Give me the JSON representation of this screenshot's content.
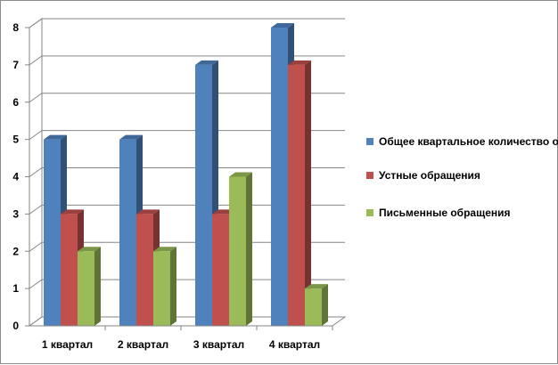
{
  "chart_data": {
    "type": "bar",
    "categories": [
      "1 квартал",
      "2 квартал",
      "3 квартал",
      "4 квартал"
    ],
    "series": [
      {
        "name": "Общее квартальное  количество обращений",
        "values": [
          5,
          5,
          7,
          8
        ],
        "color": "#4f81bd"
      },
      {
        "name": "Устные обращения",
        "values": [
          3,
          3,
          3,
          7
        ],
        "color": "#c0504d"
      },
      {
        "name": "Письменные обращения",
        "values": [
          2,
          2,
          4,
          1
        ],
        "color": "#9bbb59"
      }
    ],
    "ylim": [
      0,
      8
    ],
    "yticks": [
      "0",
      "1",
      "2",
      "3",
      "4",
      "5",
      "6",
      "7",
      "8"
    ],
    "grid": true,
    "legend_position": "right",
    "style": "3d-clustered-column"
  }
}
